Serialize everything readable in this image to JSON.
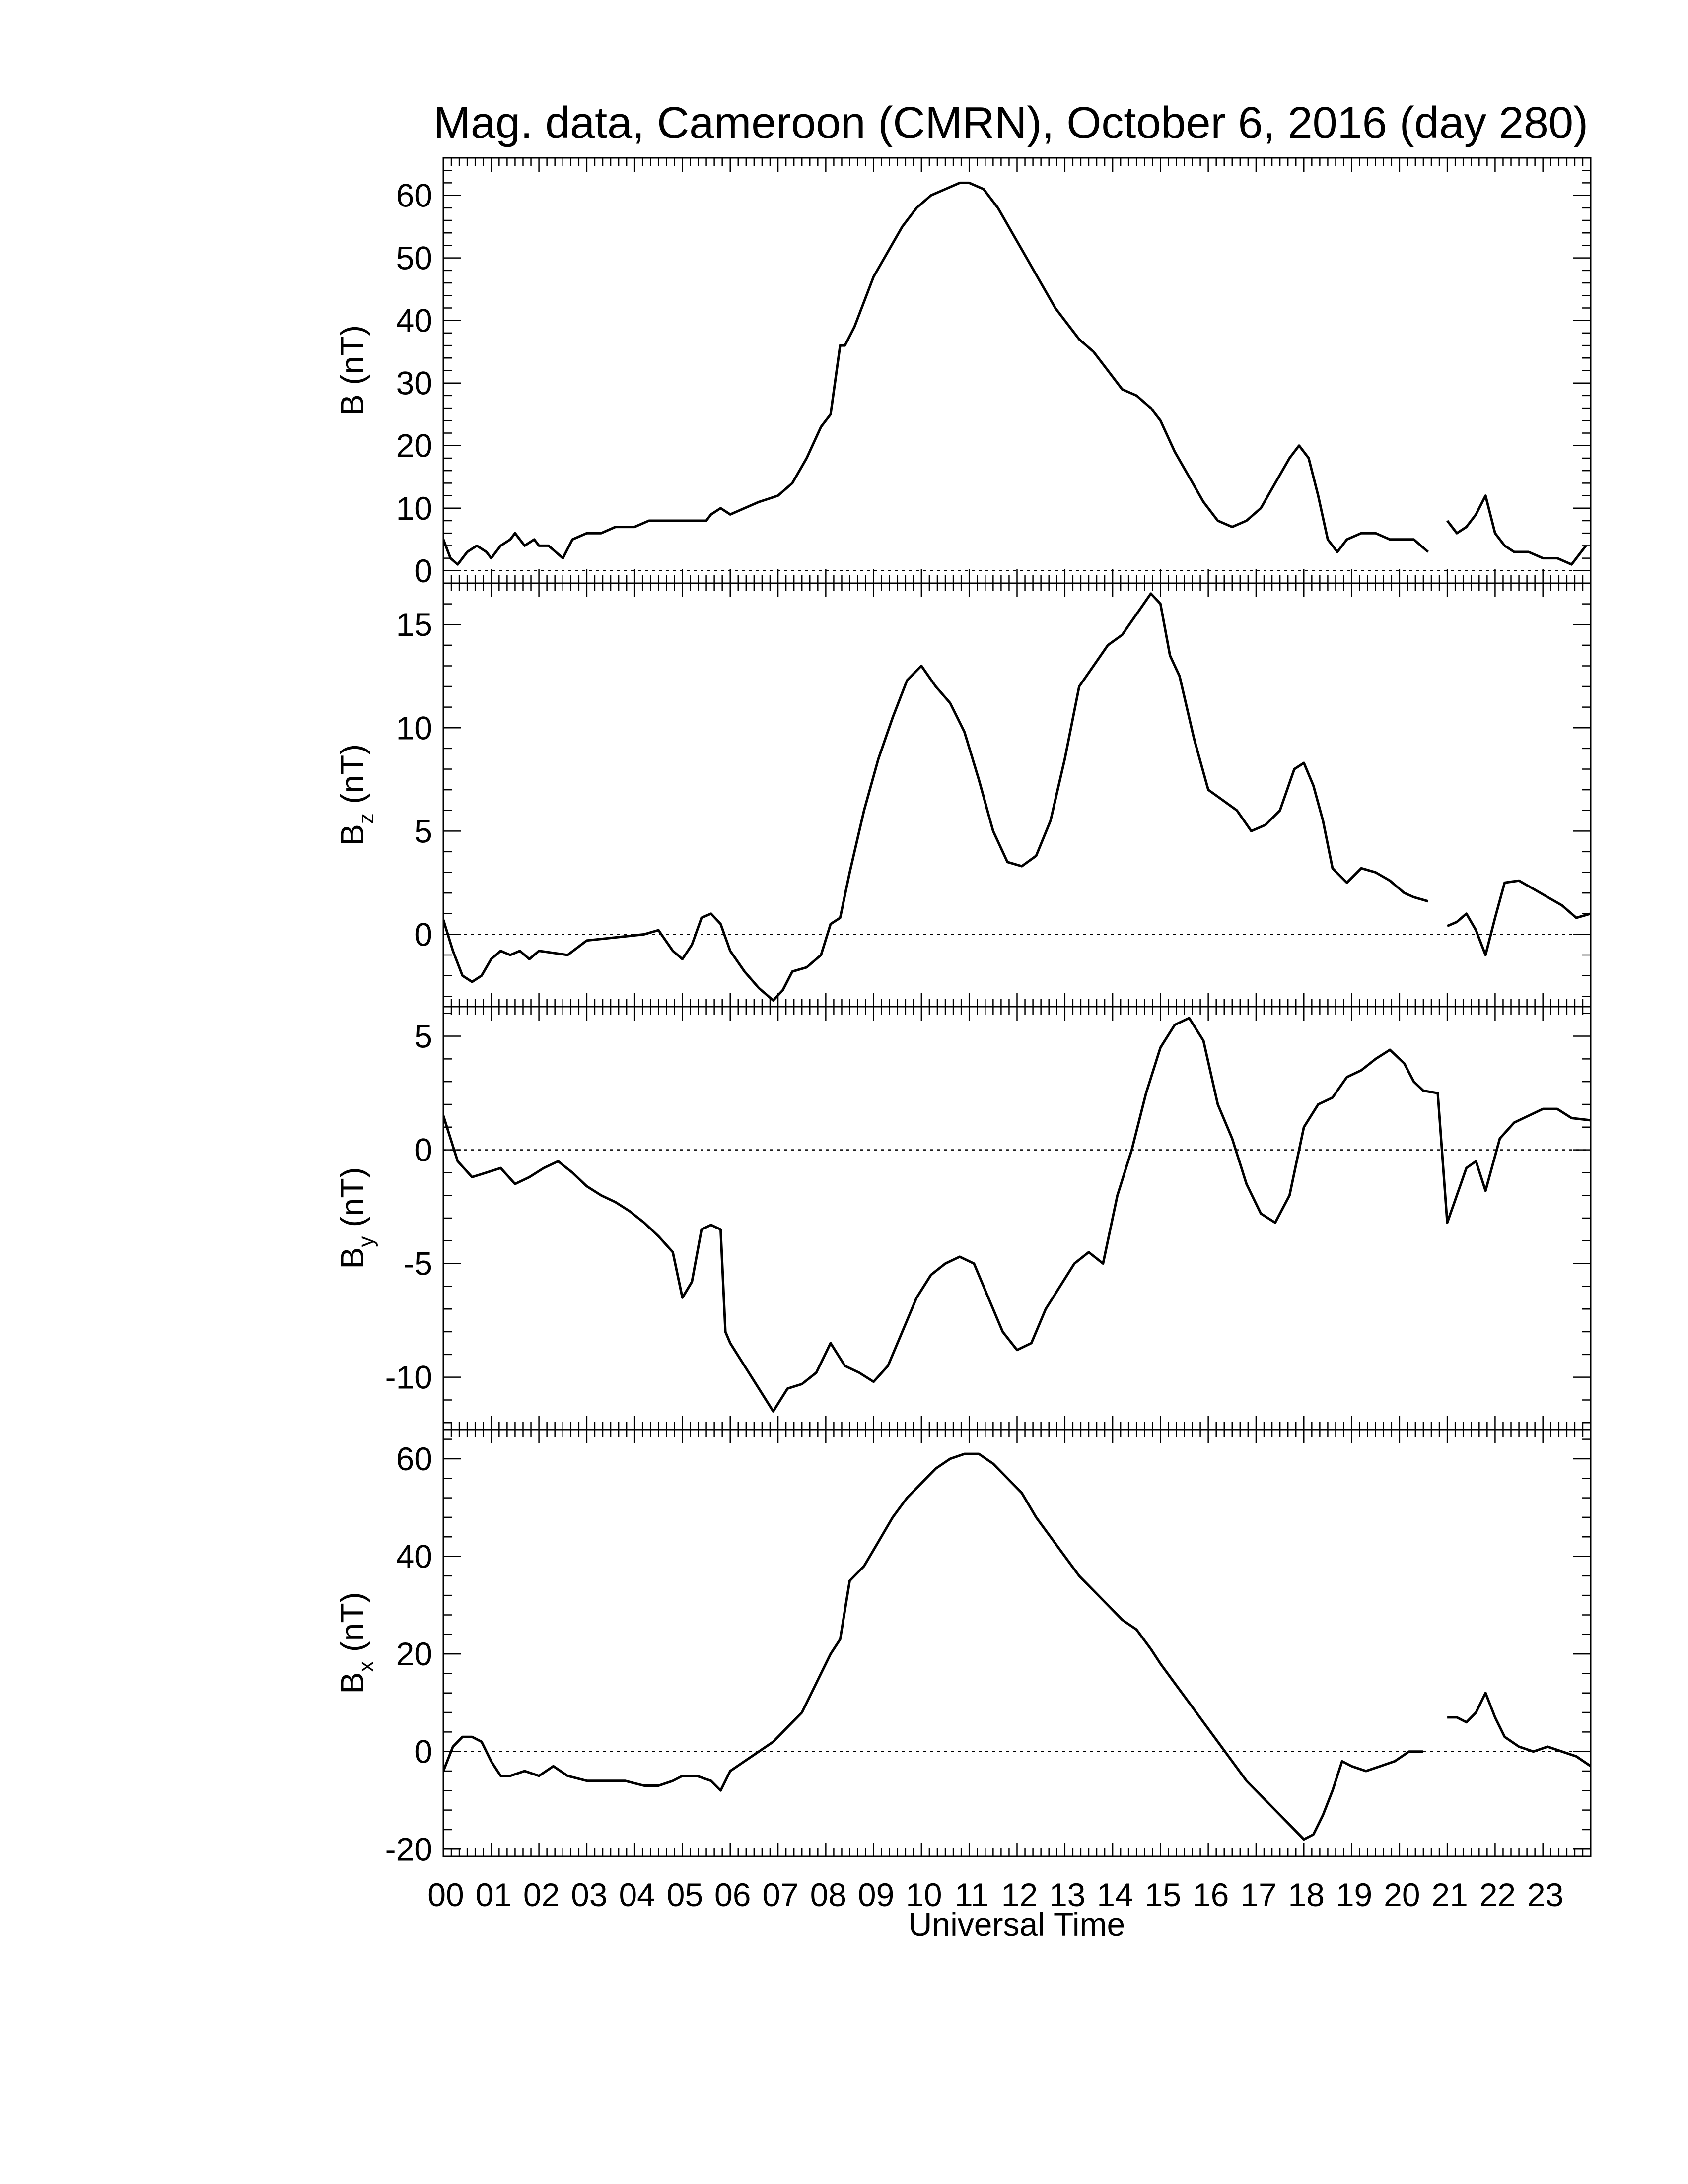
{
  "title": "Mag. data, Cameroon (CMRN), October 6, 2016 (day 280)",
  "colors": {
    "line": "#000000",
    "background": "#ffffff"
  },
  "chart_data": {
    "type": "line",
    "title": "Mag. data, Cameroon (CMRN), October 6, 2016 (day 280)",
    "xlabel": "Universal Time",
    "xlim": [
      0,
      24
    ],
    "x_ticks": [
      0,
      1,
      2,
      3,
      4,
      5,
      6,
      7,
      8,
      9,
      10,
      11,
      12,
      13,
      14,
      15,
      16,
      17,
      18,
      19,
      20,
      21,
      22,
      23
    ],
    "x_tick_labels": [
      "00",
      "01",
      "02",
      "03",
      "04",
      "05",
      "06",
      "07",
      "08",
      "09",
      "10",
      "11",
      "12",
      "13",
      "14",
      "15",
      "16",
      "17",
      "18",
      "19",
      "20",
      "21",
      "22",
      "23"
    ],
    "data_gap": [
      20.6,
      21.0
    ],
    "panels": [
      {
        "id": "B",
        "ylabel_main": "B",
        "ylabel_sub": "",
        "ylabel_unit": "(nT)",
        "ylim": [
          -2,
          66
        ],
        "yticks": [
          0,
          10,
          20,
          30,
          40,
          50,
          60
        ],
        "zero_line": true,
        "series": [
          {
            "x": [
              0,
              0.15,
              0.3,
              0.5,
              0.7,
              0.9,
              1.0,
              1.2,
              1.4,
              1.5,
              1.7,
              1.9,
              2.0,
              2.2,
              2.5,
              2.7,
              3.0,
              3.3,
              3.6,
              4.0,
              4.3,
              4.6,
              5.0,
              5.3,
              5.5,
              5.6,
              5.8,
              6.0,
              6.3,
              6.6,
              7.0,
              7.3,
              7.6,
              7.9,
              8.1,
              8.3,
              8.4,
              8.6,
              8.8,
              9.0,
              9.3,
              9.6,
              9.9,
              10.2,
              10.5,
              10.8,
              11.0,
              11.3,
              11.6,
              11.9,
              12.2,
              12.5,
              12.8,
              13.0,
              13.3,
              13.6,
              13.9,
              14.2,
              14.5,
              14.8,
              15.0,
              15.3,
              15.6,
              15.9,
              16.2,
              16.5,
              16.8,
              17.1,
              17.4,
              17.7,
              17.9,
              18.1,
              18.3,
              18.5,
              18.7,
              18.9,
              19.2,
              19.5,
              19.8,
              20.1,
              20.3,
              20.6,
              21.0,
              21.2,
              21.4,
              21.6,
              21.8,
              22.0,
              22.2,
              22.4,
              22.7,
              23.0,
              23.3,
              23.6,
              23.9
            ],
            "y": [
              5,
              2,
              1,
              3,
              4,
              3,
              2,
              4,
              5,
              6,
              4,
              5,
              4,
              4,
              2,
              5,
              6,
              6,
              7,
              7,
              8,
              8,
              8,
              8,
              8,
              9,
              10,
              9,
              10,
              11,
              12,
              14,
              18,
              23,
              25,
              36,
              36,
              39,
              43,
              47,
              51,
              55,
              58,
              60,
              61,
              62,
              62,
              61,
              58,
              54,
              50,
              46,
              42,
              40,
              37,
              35,
              32,
              29,
              28,
              26,
              24,
              19,
              15,
              11,
              8,
              7,
              8,
              10,
              14,
              18,
              20,
              18,
              12,
              5,
              3,
              5,
              6,
              6,
              5,
              5,
              5,
              3,
              8,
              6,
              7,
              9,
              12,
              6,
              4,
              3,
              3,
              2,
              2,
              1,
              4
            ]
          }
        ]
      },
      {
        "id": "Bz",
        "ylabel_main": "B",
        "ylabel_sub": "z",
        "ylabel_unit": "(nT)",
        "ylim": [
          -3.5,
          17
        ],
        "yticks": [
          0,
          5,
          10,
          15
        ],
        "zero_line": true,
        "series": [
          {
            "x": [
              0,
              0.2,
              0.4,
              0.6,
              0.8,
              1.0,
              1.2,
              1.4,
              1.6,
              1.8,
              2.0,
              2.3,
              2.6,
              3.0,
              3.4,
              3.8,
              4.2,
              4.5,
              4.8,
              5.0,
              5.2,
              5.4,
              5.6,
              5.8,
              6.0,
              6.3,
              6.6,
              6.9,
              7.1,
              7.3,
              7.6,
              7.9,
              8.1,
              8.3,
              8.5,
              8.8,
              9.1,
              9.4,
              9.7,
              10.0,
              10.3,
              10.6,
              10.9,
              11.2,
              11.5,
              11.8,
              12.1,
              12.4,
              12.7,
              13.0,
              13.3,
              13.6,
              13.9,
              14.2,
              14.5,
              14.8,
              15.0,
              15.2,
              15.4,
              15.7,
              16.0,
              16.3,
              16.6,
              16.9,
              17.2,
              17.5,
              17.8,
              18.0,
              18.2,
              18.4,
              18.6,
              18.9,
              19.2,
              19.5,
              19.8,
              20.1,
              20.3,
              20.6,
              21.0,
              21.2,
              21.4,
              21.6,
              21.8,
              22.0,
              22.2,
              22.5,
              22.8,
              23.1,
              23.4,
              23.7,
              24.0
            ],
            "y": [
              0.7,
              -0.8,
              -2.0,
              -2.3,
              -2.0,
              -1.2,
              -0.8,
              -1.0,
              -0.8,
              -1.2,
              -0.8,
              -0.9,
              -1.0,
              -0.3,
              -0.2,
              -0.1,
              0.0,
              0.2,
              -0.8,
              -1.2,
              -0.5,
              0.8,
              1.0,
              0.5,
              -0.8,
              -1.8,
              -2.6,
              -3.2,
              -2.7,
              -1.8,
              -1.6,
              -1.0,
              0.5,
              0.8,
              3.0,
              6.0,
              8.5,
              10.5,
              12.3,
              13.0,
              12.0,
              11.2,
              9.8,
              7.5,
              5.0,
              3.5,
              3.3,
              3.8,
              5.5,
              8.5,
              12.0,
              13.0,
              14.0,
              14.5,
              15.5,
              16.5,
              16.0,
              13.5,
              12.5,
              9.5,
              7.0,
              6.5,
              6.0,
              5.0,
              5.3,
              6.0,
              8.0,
              8.3,
              7.2,
              5.5,
              3.2,
              2.5,
              3.2,
              3.0,
              2.6,
              2.0,
              1.8,
              1.6,
              0.4,
              0.6,
              1.0,
              0.2,
              -1.0,
              0.8,
              2.5,
              2.6,
              2.2,
              1.8,
              1.4,
              0.8,
              1.0
            ]
          }
        ]
      },
      {
        "id": "By",
        "ylabel_main": "B",
        "ylabel_sub": "y",
        "ylabel_unit": "(nT)",
        "ylim": [
          -12.3,
          6.3
        ],
        "yticks": [
          -10,
          -5,
          0,
          5
        ],
        "zero_line": true,
        "series": [
          {
            "x": [
              0,
              0.3,
              0.6,
              0.9,
              1.2,
              1.5,
              1.8,
              2.1,
              2.4,
              2.7,
              3.0,
              3.3,
              3.6,
              3.9,
              4.2,
              4.5,
              4.8,
              5.0,
              5.2,
              5.4,
              5.6,
              5.8,
              5.9,
              6.0,
              6.3,
              6.6,
              6.9,
              7.2,
              7.5,
              7.8,
              8.1,
              8.4,
              8.7,
              9.0,
              9.3,
              9.6,
              9.9,
              10.2,
              10.5,
              10.8,
              11.1,
              11.4,
              11.7,
              12.0,
              12.3,
              12.6,
              12.9,
              13.2,
              13.5,
              13.8,
              14.1,
              14.4,
              14.7,
              15.0,
              15.3,
              15.6,
              15.9,
              16.2,
              16.5,
              16.8,
              17.1,
              17.4,
              17.7,
              18.0,
              18.3,
              18.6,
              18.9,
              19.2,
              19.5,
              19.8,
              20.1,
              20.3,
              20.5,
              20.8,
              21.0,
              21.2,
              21.4,
              21.6,
              21.8,
              22.1,
              22.4,
              22.7,
              23.0,
              23.3,
              23.6,
              24.0
            ],
            "y": [
              1.5,
              -0.5,
              -1.2,
              -1.0,
              -0.8,
              -1.5,
              -1.2,
              -0.8,
              -0.5,
              -1.0,
              -1.6,
              -2.0,
              -2.3,
              -2.7,
              -3.2,
              -3.8,
              -4.5,
              -6.5,
              -5.8,
              -3.5,
              -3.3,
              -3.5,
              -8.0,
              -8.5,
              -9.5,
              -10.5,
              -11.5,
              -10.5,
              -10.3,
              -9.8,
              -8.5,
              -9.5,
              -9.8,
              -10.2,
              -9.5,
              -8.0,
              -6.5,
              -5.5,
              -5.0,
              -4.7,
              -5.0,
              -6.5,
              -8.0,
              -8.8,
              -8.5,
              -7.0,
              -6.0,
              -5.0,
              -4.5,
              -5.0,
              -2.0,
              0.0,
              2.5,
              4.5,
              5.5,
              5.8,
              4.8,
              2.0,
              0.5,
              -1.5,
              -2.8,
              -3.2,
              -2.0,
              1.0,
              2.0,
              2.3,
              3.2,
              3.5,
              4.0,
              4.4,
              3.8,
              3.0,
              2.6,
              2.5,
              -3.2,
              -2.0,
              -0.8,
              -0.5,
              -1.8,
              0.5,
              1.2,
              1.5,
              1.8,
              1.8,
              1.4,
              1.3
            ]
          }
        ]
      },
      {
        "id": "Bx",
        "ylabel_main": "B",
        "ylabel_sub": "x",
        "ylabel_unit": "(nT)",
        "ylim": [
          -21.5,
          66
        ],
        "yticks": [
          -20,
          0,
          20,
          40,
          60
        ],
        "zero_line": true,
        "series": [
          {
            "x": [
              0,
              0.2,
              0.4,
              0.6,
              0.8,
              1.0,
              1.2,
              1.4,
              1.7,
              2.0,
              2.3,
              2.6,
              3.0,
              3.4,
              3.8,
              4.2,
              4.5,
              4.8,
              5.0,
              5.3,
              5.6,
              5.8,
              6.0,
              6.3,
              6.6,
              6.9,
              7.2,
              7.5,
              7.8,
              8.1,
              8.3,
              8.5,
              8.8,
              9.1,
              9.4,
              9.7,
              10.0,
              10.3,
              10.6,
              10.9,
              11.2,
              11.5,
              11.8,
              12.1,
              12.4,
              12.7,
              13.0,
              13.3,
              13.6,
              13.9,
              14.2,
              14.5,
              14.8,
              15.0,
              15.3,
              15.6,
              15.9,
              16.2,
              16.5,
              16.8,
              17.1,
              17.4,
              17.7,
              18.0,
              18.2,
              18.4,
              18.6,
              18.8,
              19.0,
              19.3,
              19.6,
              19.9,
              20.2,
              20.5,
              21.0,
              21.2,
              21.4,
              21.6,
              21.8,
              22.0,
              22.2,
              22.5,
              22.8,
              23.1,
              23.4,
              23.7,
              24.0
            ],
            "y": [
              -4,
              1,
              3,
              3,
              2,
              -2,
              -5,
              -5,
              -4,
              -5,
              -3,
              -5,
              -6,
              -6,
              -6,
              -7,
              -7,
              -6,
              -5,
              -5,
              -6,
              -8,
              -4,
              -2,
              0,
              2,
              5,
              8,
              14,
              20,
              23,
              35,
              38,
              43,
              48,
              52,
              55,
              58,
              60,
              61,
              61,
              59,
              56,
              53,
              48,
              44,
              40,
              36,
              33,
              30,
              27,
              25,
              21,
              18,
              14,
              10,
              6,
              2,
              -2,
              -6,
              -9,
              -12,
              -15,
              -18,
              -17,
              -13,
              -8,
              -2,
              -3,
              -4,
              -3,
              -2,
              0,
              0,
              7,
              7,
              6,
              8,
              12,
              7,
              3,
              1,
              0,
              1,
              0,
              -1,
              -3
            ]
          }
        ]
      }
    ]
  }
}
